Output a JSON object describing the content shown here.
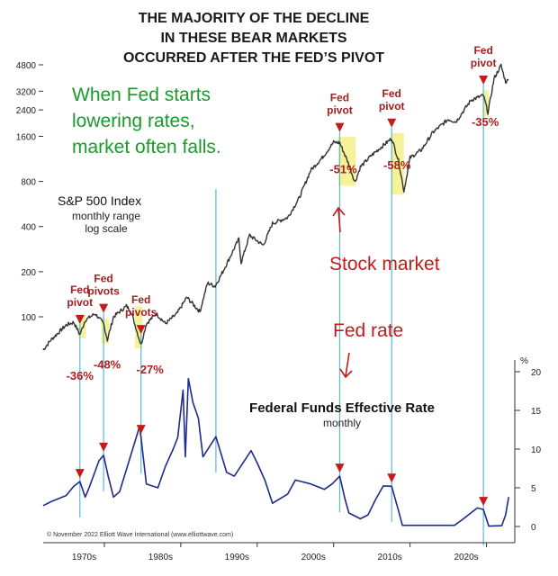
{
  "chart_data": {
    "type": "line",
    "title_lines": [
      "THE MAJORITY OF THE DECLINE",
      "IN THESE BEAR MARKETS",
      "OCCURRED AFTER THE FED’S PIVOT"
    ],
    "annotation_lines": [
      "When Fed starts",
      "lowering rates,",
      "market often falls."
    ],
    "label_stock": "Stock market",
    "label_rate": "Fed rate",
    "sp_title": "S&P 500 Index",
    "sp_sub1": "monthly range",
    "sp_sub2": "log scale",
    "ffr_title": "Federal Funds Effective Rate",
    "ffr_sub": "monthly",
    "credit": "© November 2022 Elliott Wave International (www.elliottwave.com)",
    "colors": {
      "green": "#1a9a2a",
      "red": "#c41a1a",
      "pivot": "#a02020",
      "sp": "#333333",
      "ffr": "#1e2a8c",
      "vline": "#5ab8dc",
      "highlight": "#f6f29a"
    },
    "x_ticks": [
      "1970s",
      "1980s",
      "1990s",
      "2000s",
      "2010s",
      "2020s"
    ],
    "x_tick_years": [
      1970,
      1980,
      1990,
      2000,
      2010,
      2020
    ],
    "x_range": [
      1962,
      2023
    ],
    "sp_scale": "log",
    "sp_ylim": [
      70,
      6000
    ],
    "sp_ticks": [
      100,
      200,
      400,
      800,
      1600,
      2400,
      3200,
      4800
    ],
    "ffr_ylim": [
      0,
      20
    ],
    "ffr_ticks": [
      0,
      5,
      10,
      15,
      20
    ],
    "ffr_unit": "%",
    "pivot_label": [
      "Fed",
      "pivot"
    ],
    "pivots_label": [
      "Fed",
      "pivots"
    ],
    "pivot_events": [
      {
        "year": 1966.8,
        "decline": "-36%",
        "label_type": "pivot"
      },
      {
        "year": 1969.9,
        "decline": "-48%",
        "label_type": "pivots"
      },
      {
        "year": 1974.8,
        "decline": "-27%",
        "label_type": "pivots"
      },
      {
        "year": 2000.8,
        "decline": "-51%",
        "label_type": "pivot"
      },
      {
        "year": 2007.6,
        "decline": "-58%",
        "label_type": "pivot"
      },
      {
        "year": 2019.6,
        "decline": "-35%",
        "label_type": "pivot"
      }
    ],
    "vertical_lines": [
      1966.8,
      1969.9,
      1974.8,
      1984.6,
      2000.8,
      2007.6,
      2019.6
    ],
    "series": [
      {
        "values": [
          [
            1962,
            60
          ],
          [
            1963,
            70
          ],
          [
            1965,
            88
          ],
          [
            1966,
            92
          ],
          [
            1966.8,
            76
          ],
          [
            1967.5,
            95
          ],
          [
            1968.8,
            105
          ],
          [
            1969.9,
            90
          ],
          [
            1970.4,
            70
          ],
          [
            1971.2,
            100
          ],
          [
            1972.9,
            118
          ],
          [
            1973.5,
            108
          ],
          [
            1974.8,
            65
          ],
          [
            1975.5,
            90
          ],
          [
            1976.8,
            105
          ],
          [
            1978,
            90
          ],
          [
            1979.5,
            105
          ],
          [
            1980.8,
            135
          ],
          [
            1982.5,
            108
          ],
          [
            1983.5,
            168
          ],
          [
            1984.5,
            160
          ],
          [
            1985.5,
            200
          ],
          [
            1987.6,
            330
          ],
          [
            1987.9,
            230
          ],
          [
            1989,
            350
          ],
          [
            1990.8,
            300
          ],
          [
            1992,
            420
          ],
          [
            1994,
            460
          ],
          [
            1995.5,
            620
          ],
          [
            1997,
            950
          ],
          [
            1998.5,
            1150
          ],
          [
            2000,
            1460
          ],
          [
            2000.8,
            1450
          ],
          [
            2001.8,
            1100
          ],
          [
            2002.8,
            790
          ],
          [
            2003.5,
            1000
          ],
          [
            2005,
            1200
          ],
          [
            2007.6,
            1550
          ],
          [
            2008.5,
            1100
          ],
          [
            2009.2,
            690
          ],
          [
            2010,
            1150
          ],
          [
            2011.5,
            1300
          ],
          [
            2013,
            1700
          ],
          [
            2015,
            2080
          ],
          [
            2016,
            2000
          ],
          [
            2018,
            2800
          ],
          [
            2019.6,
            3000
          ],
          [
            2020.2,
            2300
          ],
          [
            2021,
            3900
          ],
          [
            2021.9,
            4750
          ],
          [
            2022.5,
            3700
          ],
          [
            2022.9,
            3800
          ]
        ]
      },
      {
        "values": [
          [
            1962,
            2.7
          ],
          [
            1963,
            3.2
          ],
          [
            1965,
            4.0
          ],
          [
            1966,
            5.2
          ],
          [
            1966.8,
            5.8
          ],
          [
            1967.5,
            3.8
          ],
          [
            1968,
            5.0
          ],
          [
            1969.3,
            8.5
          ],
          [
            1969.9,
            9.2
          ],
          [
            1970.5,
            6.5
          ],
          [
            1971.2,
            3.8
          ],
          [
            1972,
            4.5
          ],
          [
            1973.4,
            9.0
          ],
          [
            1974.6,
            12.9
          ],
          [
            1974.8,
            11.5
          ],
          [
            1975.5,
            5.5
          ],
          [
            1977,
            5.0
          ],
          [
            1978,
            7.8
          ],
          [
            1979,
            10.0
          ],
          [
            1979.6,
            11.5
          ],
          [
            1980.3,
            17.6
          ],
          [
            1980.6,
            9.0
          ],
          [
            1981.0,
            19.1
          ],
          [
            1981.6,
            16.0
          ],
          [
            1982.3,
            14.0
          ],
          [
            1982.9,
            9.0
          ],
          [
            1984.6,
            11.6
          ],
          [
            1986,
            7.0
          ],
          [
            1987,
            6.5
          ],
          [
            1989.2,
            9.8
          ],
          [
            1990,
            8.2
          ],
          [
            1991,
            6.0
          ],
          [
            1992,
            3.0
          ],
          [
            1994,
            4.2
          ],
          [
            1995,
            6.0
          ],
          [
            1997,
            5.5
          ],
          [
            1998.8,
            4.8
          ],
          [
            1999.8,
            5.5
          ],
          [
            2000.8,
            6.5
          ],
          [
            2001.5,
            3.5
          ],
          [
            2002,
            1.75
          ],
          [
            2003.5,
            1.0
          ],
          [
            2004.5,
            1.5
          ],
          [
            2005.5,
            3.5
          ],
          [
            2006.5,
            5.25
          ],
          [
            2007.6,
            5.2
          ],
          [
            2008.5,
            2.0
          ],
          [
            2009,
            0.15
          ],
          [
            2015.8,
            0.15
          ],
          [
            2017,
            1.0
          ],
          [
            2018.8,
            2.4
          ],
          [
            2019.6,
            2.2
          ],
          [
            2020.3,
            0.05
          ],
          [
            2022,
            0.1
          ],
          [
            2022.5,
            1.5
          ],
          [
            2022.9,
            3.8
          ]
        ]
      }
    ]
  }
}
